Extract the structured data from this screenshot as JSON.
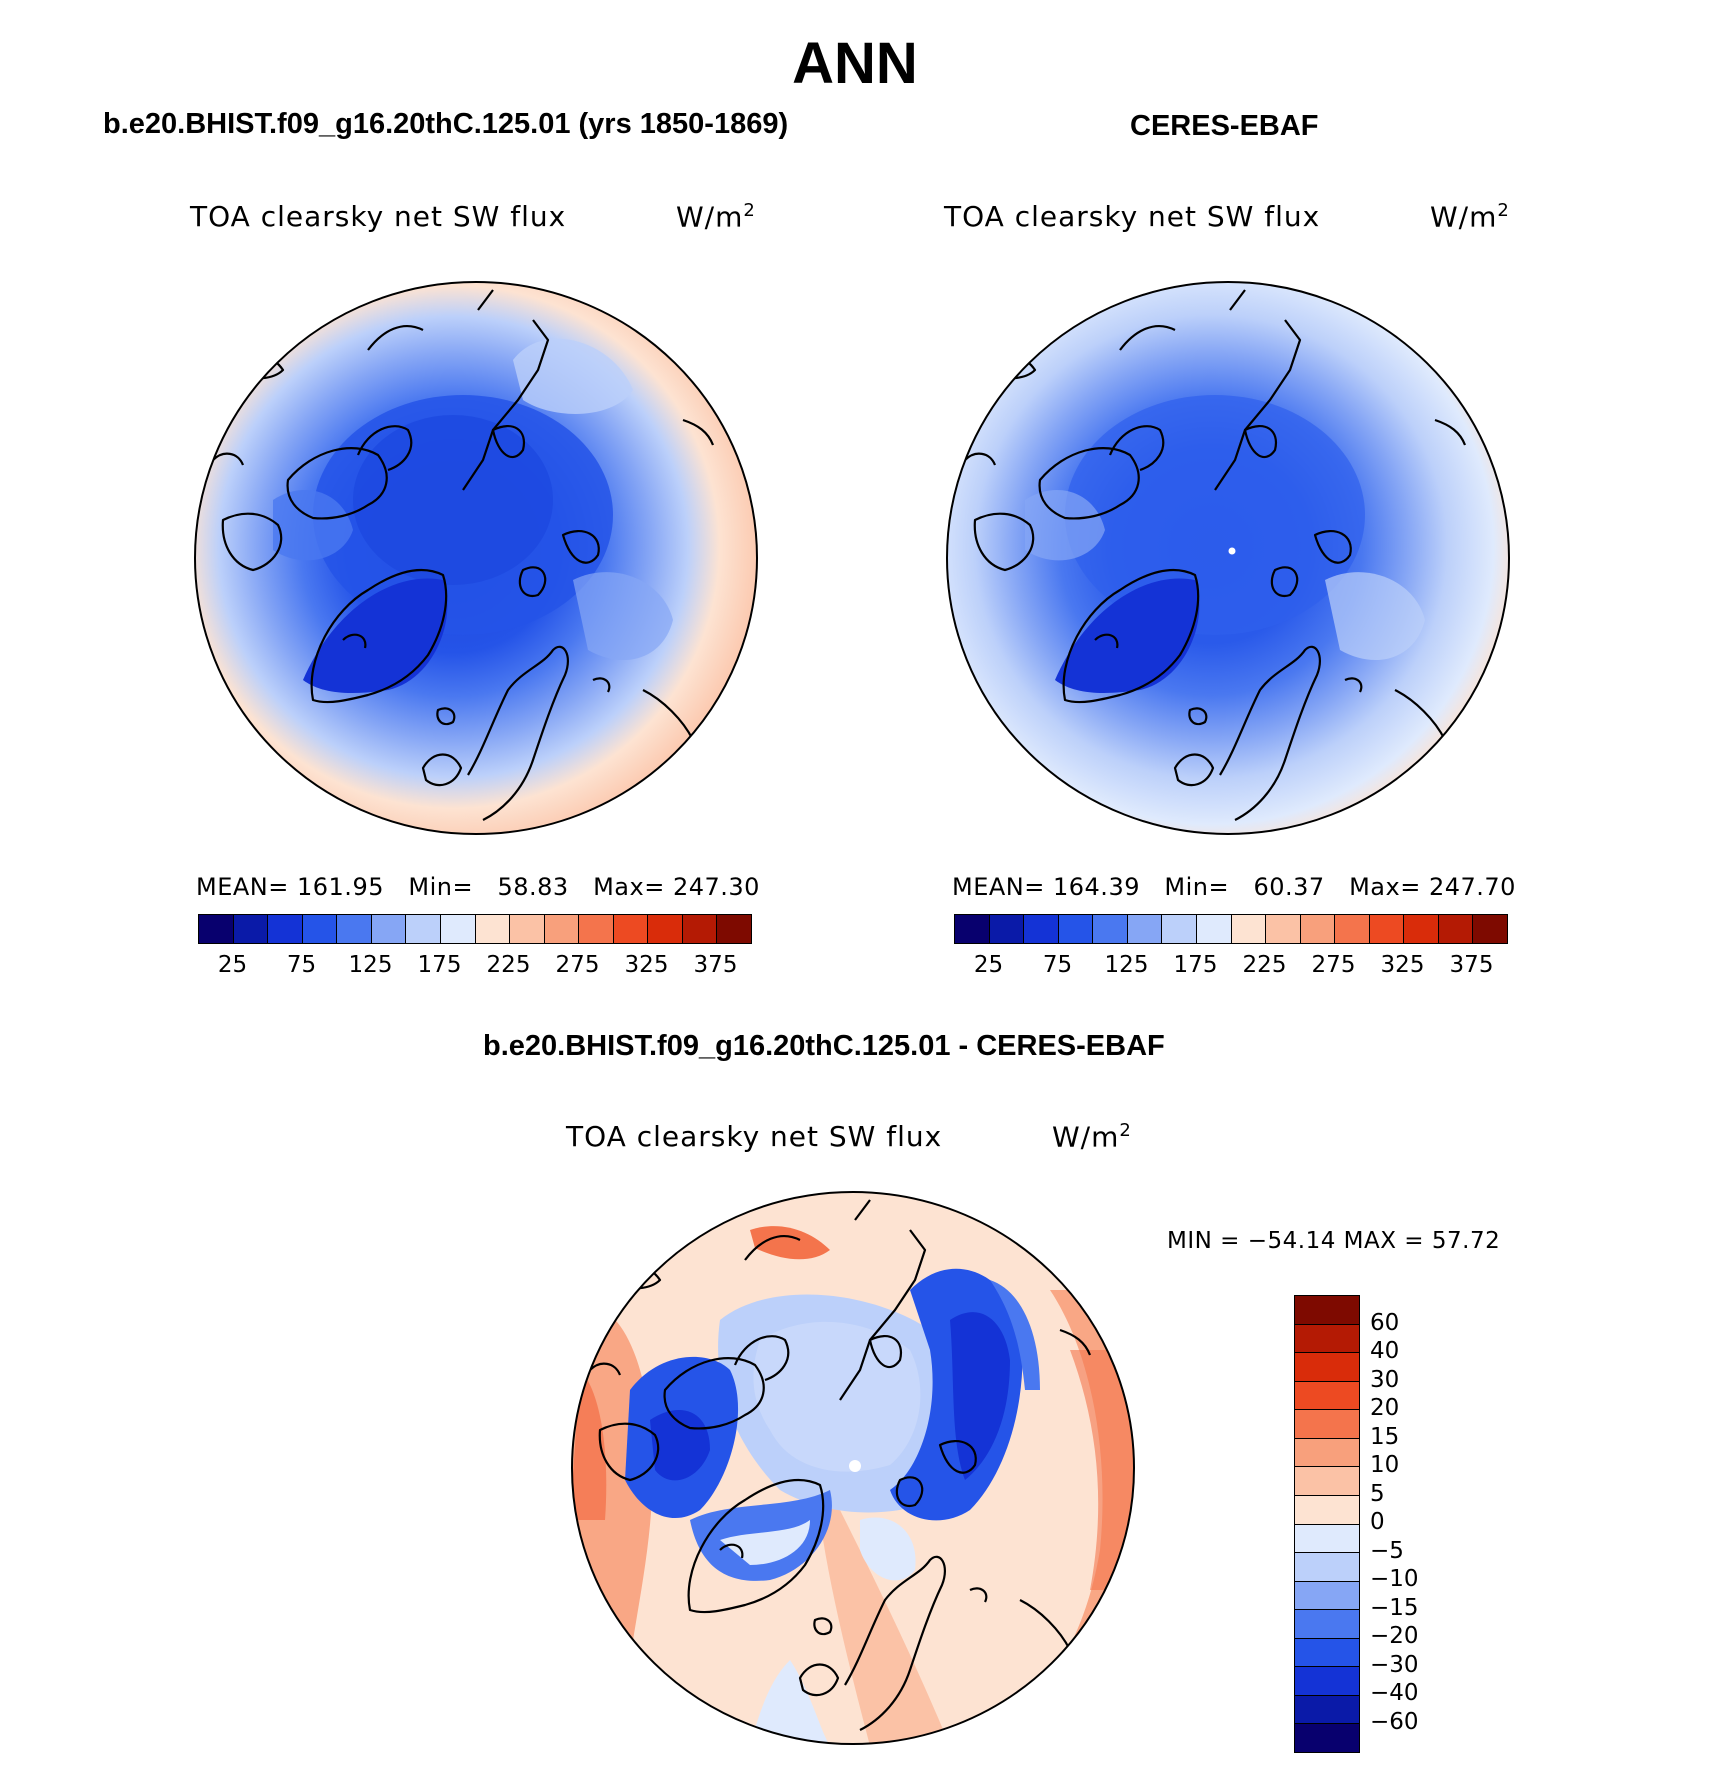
{
  "title": "ANN",
  "panels": [
    {
      "id": "model",
      "header": "b.e20.BHIST.f09_g16.20thC.125.01 (yrs 1850-1869)",
      "variable": "TOA clearsky net SW flux",
      "units_base": "W/m",
      "units_exp": "2",
      "stats": {
        "mean_label": "MEAN=",
        "mean": "161.95",
        "min_label": "Min=",
        "min": "58.83",
        "max_label": "Max=",
        "max": "247.30"
      }
    },
    {
      "id": "obs",
      "header": "CERES-EBAF",
      "variable": "TOA clearsky net SW flux",
      "units_base": "W/m",
      "units_exp": "2",
      "stats": {
        "mean_label": "MEAN=",
        "mean": "164.39",
        "min_label": "Min=",
        "min": "60.37",
        "max_label": "Max=",
        "max": "247.70"
      }
    },
    {
      "id": "diff",
      "header": "b.e20.BHIST.f09_g16.20thC.125.01 - CERES-EBAF",
      "variable": "TOA clearsky net SW flux",
      "units_base": "W/m",
      "units_exp": "2",
      "stats_line": "MIN = −54.14 MAX =  57.72"
    }
  ],
  "abs_colorbar": {
    "colors": [
      "#08006e",
      "#0a1aa8",
      "#1433d6",
      "#2554e8",
      "#4a78f0",
      "#86a6f5",
      "#bcd0fa",
      "#dfeafd",
      "#fde3d2",
      "#fbc2a6",
      "#f8a07c",
      "#f4744c",
      "#ed4a22",
      "#d92c0a",
      "#b41a04",
      "#7e0a00"
    ],
    "tick_labels": [
      "25",
      "75",
      "125",
      "175",
      "225",
      "275",
      "325",
      "375"
    ]
  },
  "diff_colorbar": {
    "colors": [
      "#7e0a00",
      "#b41a04",
      "#d92c0a",
      "#ed4a22",
      "#f4744c",
      "#f8a07c",
      "#fbc2a6",
      "#fde3d2",
      "#dfeafd",
      "#bcd0fa",
      "#86a6f5",
      "#4a78f0",
      "#2554e8",
      "#1433d6",
      "#0a1aa8",
      "#08006e"
    ],
    "tick_labels": [
      "60",
      "40",
      "30",
      "20",
      "15",
      "10",
      "5",
      "0",
      "−5",
      "−10",
      "−15",
      "−20",
      "−30",
      "−40",
      "−60"
    ]
  }
}
